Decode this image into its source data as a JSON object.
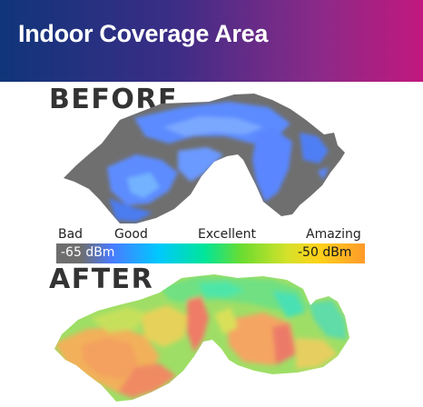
{
  "header": {
    "title": "Indoor Coverage Area",
    "gradient": [
      "#10357a",
      "#3a2d86",
      "#8a2a88",
      "#c2187e"
    ]
  },
  "before": {
    "label": "BEFORE"
  },
  "after": {
    "label": "AFTER"
  },
  "scale": {
    "levels": [
      "Bad",
      "Good",
      "Excellent",
      "Amazing"
    ],
    "min_label": "-65 dBm",
    "max_label": "-50 dBm",
    "colors": {
      "bad": "#6e6e6e",
      "good": "#4a7bff",
      "excellent": "#6bdc30",
      "amazing": "#ff9a2a"
    }
  }
}
